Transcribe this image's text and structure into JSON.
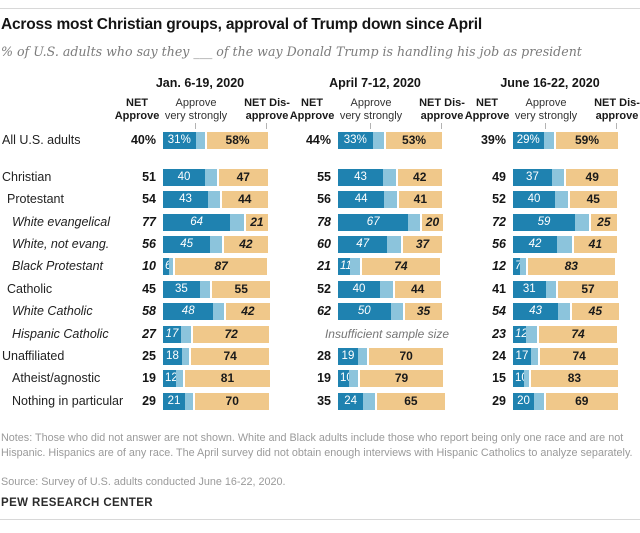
{
  "meta": {
    "title": "Across most Christian groups, approval of Trump down since April",
    "subtitle": "% of U.S. adults who say they ___ of the way Donald Trump is handling his job as president",
    "notes": "Notes: Those who did not answer are not shown. White and Black adults include those who report being only one race and are not Hispanic. Hispanics are of any race. The April survey did not obtain enough interviews with Hispanic Catholics to analyze separately.",
    "source": "Source: Survey of U.S. adults conducted June 16-22, 2020.",
    "brand": "PEW RESEARCH CENTER"
  },
  "columns": {
    "periods": [
      "Jan. 6-19, 2020",
      "April 7-12, 2020",
      "June 16-22, 2020"
    ],
    "net_line1": "NET",
    "net_line2": "Approve",
    "strongly_line1": "Approve",
    "strongly_line2": "very strongly",
    "dis_line1": "NET Dis-",
    "dis_line2": "approve"
  },
  "strings": {
    "insufficient": "Insufficient sample size"
  },
  "colors": {
    "approve_strong": "#1f82b0",
    "approve_light": "#8cc4dc",
    "disapprove": "#f0c88a"
  },
  "rows": [
    {
      "label": "All U.S. adults",
      "indent": 0,
      "italic": false,
      "periods": [
        {
          "net": 40,
          "strongly": 31,
          "dis": 58,
          "net_label": "40%",
          "strongly_label": "31%",
          "dis_label": "58%"
        },
        {
          "net": 44,
          "strongly": 33,
          "dis": 53,
          "net_label": "44%",
          "strongly_label": "33%",
          "dis_label": "53%"
        },
        {
          "net": 39,
          "strongly": 29,
          "dis": 59,
          "net_label": "39%",
          "strongly_label": "29%",
          "dis_label": "59%"
        }
      ]
    },
    {
      "label": "Christian",
      "indent": 0,
      "italic": false,
      "periods": [
        {
          "net": 51,
          "strongly": 40,
          "dis": 47,
          "net_label": "51",
          "strongly_label": "40",
          "dis_label": "47"
        },
        {
          "net": 55,
          "strongly": 43,
          "dis": 42,
          "net_label": "55",
          "strongly_label": "43",
          "dis_label": "42"
        },
        {
          "net": 49,
          "strongly": 37,
          "dis": 49,
          "net_label": "49",
          "strongly_label": "37",
          "dis_label": "49"
        }
      ]
    },
    {
      "label": "Protestant",
      "indent": 1,
      "italic": false,
      "periods": [
        {
          "net": 54,
          "strongly": 43,
          "dis": 44,
          "net_label": "54",
          "strongly_label": "43",
          "dis_label": "44"
        },
        {
          "net": 56,
          "strongly": 44,
          "dis": 41,
          "net_label": "56",
          "strongly_label": "44",
          "dis_label": "41"
        },
        {
          "net": 52,
          "strongly": 40,
          "dis": 45,
          "net_label": "52",
          "strongly_label": "40",
          "dis_label": "45"
        }
      ]
    },
    {
      "label": "White evangelical",
      "indent": 2,
      "italic": true,
      "periods": [
        {
          "net": 77,
          "strongly": 64,
          "dis": 21,
          "net_label": "77",
          "strongly_label": "64",
          "dis_label": "21"
        },
        {
          "net": 78,
          "strongly": 67,
          "dis": 20,
          "net_label": "78",
          "strongly_label": "67",
          "dis_label": "20"
        },
        {
          "net": 72,
          "strongly": 59,
          "dis": 25,
          "net_label": "72",
          "strongly_label": "59",
          "dis_label": "25"
        }
      ]
    },
    {
      "label": "White, not evang.",
      "indent": 2,
      "italic": true,
      "periods": [
        {
          "net": 56,
          "strongly": 45,
          "dis": 42,
          "net_label": "56",
          "strongly_label": "45",
          "dis_label": "42"
        },
        {
          "net": 60,
          "strongly": 47,
          "dis": 37,
          "net_label": "60",
          "strongly_label": "47",
          "dis_label": "37"
        },
        {
          "net": 56,
          "strongly": 42,
          "dis": 41,
          "net_label": "56",
          "strongly_label": "42",
          "dis_label": "41"
        }
      ]
    },
    {
      "label": "Black Protestant",
      "indent": 2,
      "italic": true,
      "periods": [
        {
          "net": 10,
          "strongly": 6,
          "dis": 87,
          "net_label": "10",
          "strongly_label": "6",
          "dis_label": "87"
        },
        {
          "net": 21,
          "strongly": 11,
          "dis": 74,
          "net_label": "21",
          "strongly_label": "11",
          "dis_label": "74"
        },
        {
          "net": 12,
          "strongly": 7,
          "dis": 83,
          "net_label": "12",
          "strongly_label": "7",
          "dis_label": "83"
        }
      ]
    },
    {
      "label": "Catholic",
      "indent": 1,
      "italic": false,
      "periods": [
        {
          "net": 45,
          "strongly": 35,
          "dis": 55,
          "net_label": "45",
          "strongly_label": "35",
          "dis_label": "55"
        },
        {
          "net": 52,
          "strongly": 40,
          "dis": 44,
          "net_label": "52",
          "strongly_label": "40",
          "dis_label": "44"
        },
        {
          "net": 41,
          "strongly": 31,
          "dis": 57,
          "net_label": "41",
          "strongly_label": "31",
          "dis_label": "57"
        }
      ]
    },
    {
      "label": "White Catholic",
      "indent": 2,
      "italic": true,
      "periods": [
        {
          "net": 58,
          "strongly": 48,
          "dis": 42,
          "net_label": "58",
          "strongly_label": "48",
          "dis_label": "42"
        },
        {
          "net": 62,
          "strongly": 50,
          "dis": 35,
          "net_label": "62",
          "strongly_label": "50",
          "dis_label": "35"
        },
        {
          "net": 54,
          "strongly": 43,
          "dis": 45,
          "net_label": "54",
          "strongly_label": "43",
          "dis_label": "45"
        }
      ]
    },
    {
      "label": "Hispanic Catholic",
      "indent": 2,
      "italic": true,
      "periods": [
        {
          "net": 27,
          "strongly": 17,
          "dis": 72,
          "net_label": "27",
          "strongly_label": "17",
          "dis_label": "72"
        },
        null,
        {
          "net": 23,
          "strongly": 12,
          "dis": 74,
          "net_label": "23",
          "strongly_label": "12",
          "dis_label": "74"
        }
      ]
    },
    {
      "label": "Unaffiliated",
      "indent": 0,
      "italic": false,
      "periods": [
        {
          "net": 25,
          "strongly": 18,
          "dis": 74,
          "net_label": "25",
          "strongly_label": "18",
          "dis_label": "74"
        },
        {
          "net": 28,
          "strongly": 19,
          "dis": 70,
          "net_label": "28",
          "strongly_label": "19",
          "dis_label": "70"
        },
        {
          "net": 24,
          "strongly": 17,
          "dis": 74,
          "net_label": "24",
          "strongly_label": "17",
          "dis_label": "74"
        }
      ]
    },
    {
      "label": "Atheist/agnostic",
      "indent": 2,
      "italic": false,
      "periods": [
        {
          "net": 19,
          "strongly": 12,
          "dis": 81,
          "net_label": "19",
          "strongly_label": "12",
          "dis_label": "81"
        },
        {
          "net": 19,
          "strongly": 10,
          "dis": 79,
          "net_label": "19",
          "strongly_label": "10",
          "dis_label": "79"
        },
        {
          "net": 15,
          "strongly": 10,
          "dis": 83,
          "net_label": "15",
          "strongly_label": "10",
          "dis_label": "83"
        }
      ]
    },
    {
      "label": "Nothing in particular",
      "indent": 2,
      "italic": false,
      "periods": [
        {
          "net": 29,
          "strongly": 21,
          "dis": 70,
          "net_label": "29",
          "strongly_label": "21",
          "dis_label": "70"
        },
        {
          "net": 35,
          "strongly": 24,
          "dis": 65,
          "net_label": "35",
          "strongly_label": "24",
          "dis_label": "65"
        },
        {
          "net": 29,
          "strongly": 20,
          "dis": 69,
          "net_label": "29",
          "strongly_label": "20",
          "dis_label": "69"
        }
      ]
    }
  ],
  "chart_data": {
    "type": "bar",
    "subtype": "horizontal-stacked-grouped",
    "title": "Across most Christian groups, approval of Trump down since April",
    "subtitle": "% of U.S. adults who say they ___ of the way Donald Trump is handling his job as president",
    "units": "%",
    "x_range": [
      0,
      100
    ],
    "grid": false,
    "legend": {
      "position": "column-headers",
      "entries": [
        "NET Approve",
        "Approve very strongly",
        "NET Disapprove"
      ]
    },
    "categories": [
      "All U.S. adults",
      "Christian",
      "Protestant",
      "White evangelical",
      "White, not evang.",
      "Black Protestant",
      "Catholic",
      "White Catholic",
      "Hispanic Catholic",
      "Unaffiliated",
      "Atheist/agnostic",
      "Nothing in particular"
    ],
    "series": [
      {
        "name": "Jan. 6-19, 2020",
        "net_approve": [
          40,
          51,
          54,
          77,
          56,
          10,
          45,
          58,
          27,
          25,
          19,
          29
        ],
        "approve_very_strongly": [
          31,
          40,
          43,
          64,
          45,
          6,
          35,
          48,
          17,
          18,
          12,
          21
        ],
        "net_disapprove": [
          58,
          47,
          44,
          21,
          42,
          87,
          55,
          42,
          72,
          74,
          81,
          70
        ]
      },
      {
        "name": "April 7-12, 2020",
        "net_approve": [
          44,
          55,
          56,
          78,
          60,
          21,
          52,
          62,
          null,
          28,
          19,
          35
        ],
        "approve_very_strongly": [
          33,
          43,
          44,
          67,
          47,
          11,
          40,
          50,
          null,
          19,
          10,
          24
        ],
        "net_disapprove": [
          53,
          42,
          41,
          20,
          37,
          74,
          44,
          35,
          null,
          70,
          79,
          65
        ]
      },
      {
        "name": "June 16-22, 2020",
        "net_approve": [
          39,
          49,
          52,
          72,
          56,
          12,
          41,
          54,
          23,
          24,
          15,
          29
        ],
        "approve_very_strongly": [
          29,
          37,
          40,
          59,
          42,
          7,
          31,
          43,
          12,
          17,
          10,
          20
        ],
        "net_disapprove": [
          59,
          49,
          45,
          25,
          41,
          83,
          57,
          45,
          74,
          74,
          83,
          69
        ]
      }
    ],
    "annotations": [
      "Insufficient sample size — Hispanic Catholic, April 7-12, 2020"
    ]
  }
}
